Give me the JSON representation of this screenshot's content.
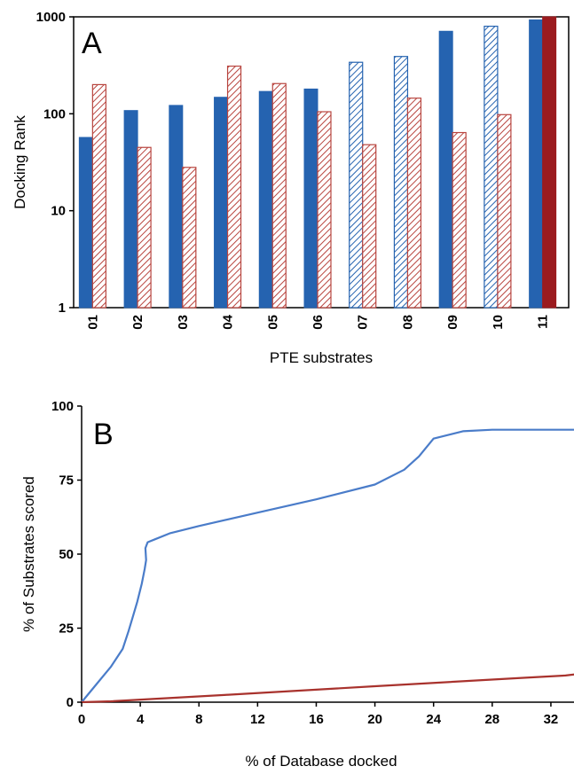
{
  "chart_data": [
    {
      "type": "bar",
      "panel_label": "A",
      "xlabel": "PTE substrates",
      "ylabel": "Docking Rank",
      "yscale": "log",
      "ylim": [
        1,
        1000
      ],
      "yticks": [
        "1",
        "10",
        "100",
        "1000"
      ],
      "categories": [
        "01",
        "02",
        "03",
        "04",
        "05",
        "06",
        "07",
        "08",
        "09",
        "10",
        "11"
      ],
      "series": [
        {
          "values": [
            57,
            108,
            122,
            148,
            170,
            180,
            340,
            390,
            710,
            800,
            930
          ],
          "patterns": [
            "solid",
            "solid",
            "solid",
            "solid",
            "solid",
            "solid",
            "hatched",
            "hatched",
            "solid",
            "hatched",
            "solid"
          ],
          "color": "#2563b0",
          "hatch_color": "#2563b0"
        },
        {
          "values": [
            200,
            45,
            28,
            310,
            205,
            105,
            48,
            145,
            64,
            98,
            1000
          ],
          "patterns": [
            "hatched",
            "hatched",
            "hatched",
            "hatched",
            "hatched",
            "hatched",
            "hatched",
            "hatched",
            "hatched",
            "hatched",
            "solid"
          ],
          "color": "#9b1b1f",
          "hatch_color": "#b8453f"
        }
      ]
    },
    {
      "type": "line",
      "panel_label": "B",
      "xlabel": "% of Database docked",
      "ylabel": "% of Substrates scored",
      "xlim": [
        0,
        34
      ],
      "ylim": [
        0,
        100
      ],
      "xticks": [
        "0",
        "4",
        "8",
        "12",
        "16",
        "20",
        "24",
        "28",
        "32"
      ],
      "yticks": [
        "0",
        "25",
        "50",
        "75",
        "100"
      ],
      "series": [
        {
          "color": "#4a7cc9",
          "x": [
            0,
            1,
            2,
            2.8,
            3.2,
            3.5,
            3.8,
            4.1,
            4.3,
            4.4,
            4.35,
            4.5,
            5,
            6,
            8,
            12,
            16,
            20,
            22,
            23,
            24,
            26,
            28,
            34
          ],
          "y": [
            0,
            6,
            12,
            18,
            24,
            29,
            34,
            40,
            45,
            48,
            52,
            54,
            55,
            57,
            59.5,
            64,
            68.5,
            73.5,
            78.5,
            83,
            89,
            91.5,
            92,
            92
          ]
        },
        {
          "color": "#a8322d",
          "x": [
            0,
            2,
            10,
            20,
            30,
            33,
            34
          ],
          "y": [
            0,
            0.3,
            2.5,
            5.4,
            8.2,
            9,
            9.6
          ]
        }
      ]
    }
  ]
}
